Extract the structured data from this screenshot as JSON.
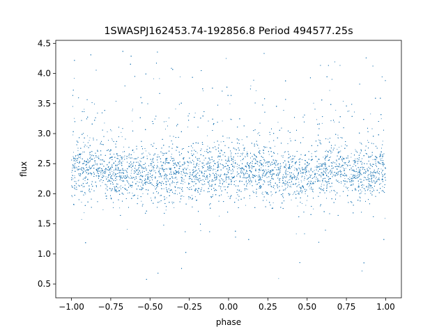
{
  "chart_data": {
    "type": "scatter",
    "title": "1SWASPJ162453.74-192856.8 Period 494577.25s",
    "xlabel": "phase",
    "ylabel": "flux",
    "xlim": [
      -1.1,
      1.1
    ],
    "ylim": [
      0.27,
      4.55
    ],
    "x_ticks": [
      -1.0,
      -0.75,
      -0.5,
      -0.25,
      0.0,
      0.25,
      0.5,
      0.75,
      1.0
    ],
    "x_tick_labels": [
      "−1.00",
      "−0.75",
      "−0.50",
      "−0.25",
      "0.00",
      "0.25",
      "0.50",
      "0.75",
      "1.00"
    ],
    "y_ticks": [
      0.5,
      1.0,
      1.5,
      2.0,
      2.5,
      3.0,
      3.5,
      4.0,
      4.5
    ],
    "y_tick_labels": [
      "0.5",
      "1.0",
      "1.5",
      "2.0",
      "2.5",
      "3.0",
      "3.5",
      "4.0",
      "4.5"
    ],
    "grid": false,
    "legend": "none",
    "point_color": "#1f77b4",
    "series": [
      {
        "phase": [
          -1.0,
          -0.95,
          -0.9,
          -0.85,
          -0.8,
          -0.75,
          -0.7,
          -0.65,
          -0.6,
          -0.55,
          -0.5,
          -0.45,
          -0.4,
          -0.35,
          -0.3,
          -0.25,
          -0.2,
          -0.15,
          -0.1,
          -0.05,
          0.0,
          0.05,
          0.1,
          0.15,
          0.2,
          0.25,
          0.3,
          0.35,
          0.4,
          0.45,
          0.5,
          0.55,
          0.6,
          0.65,
          0.7,
          0.75,
          0.8,
          0.85,
          0.9,
          0.95,
          1.0
        ],
        "median_flux": [
          2.4,
          2.38,
          2.37,
          2.4,
          2.43,
          2.36,
          2.33,
          2.32,
          2.34,
          2.3,
          2.28,
          2.3,
          2.31,
          2.33,
          2.35,
          2.34,
          2.33,
          2.34,
          2.36,
          2.37,
          2.4,
          2.38,
          2.36,
          2.38,
          2.42,
          2.38,
          2.37,
          2.35,
          2.34,
          2.3,
          2.32,
          2.34,
          2.33,
          2.36,
          2.39,
          2.35,
          2.34,
          2.33,
          2.35,
          2.36,
          2.4
        ],
        "spread": 0.22,
        "flux_min": 0.45,
        "flux_max": 4.37
      }
    ]
  }
}
